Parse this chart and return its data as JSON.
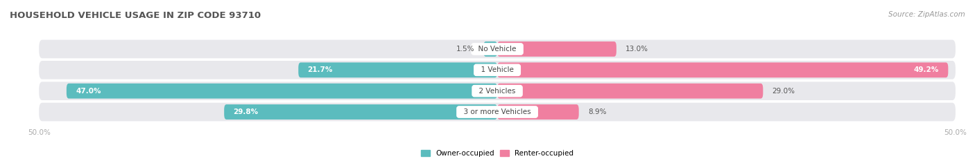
{
  "title": "HOUSEHOLD VEHICLE USAGE IN ZIP CODE 93710",
  "source": "Source: ZipAtlas.com",
  "categories": [
    "No Vehicle",
    "1 Vehicle",
    "2 Vehicles",
    "3 or more Vehicles"
  ],
  "owner_values": [
    1.5,
    21.7,
    47.0,
    29.8
  ],
  "renter_values": [
    13.0,
    49.2,
    29.0,
    8.9
  ],
  "owner_color": "#5bbcbe",
  "renter_color": "#f07fa0",
  "bar_bg_color": "#e8e8ec",
  "axis_label_color": "#aaaaaa",
  "title_color": "#555555",
  "source_color": "#999999",
  "xlim": [
    -50,
    50
  ],
  "bar_height": 0.72,
  "figsize": [
    14.06,
    2.33
  ],
  "dpi": 100
}
